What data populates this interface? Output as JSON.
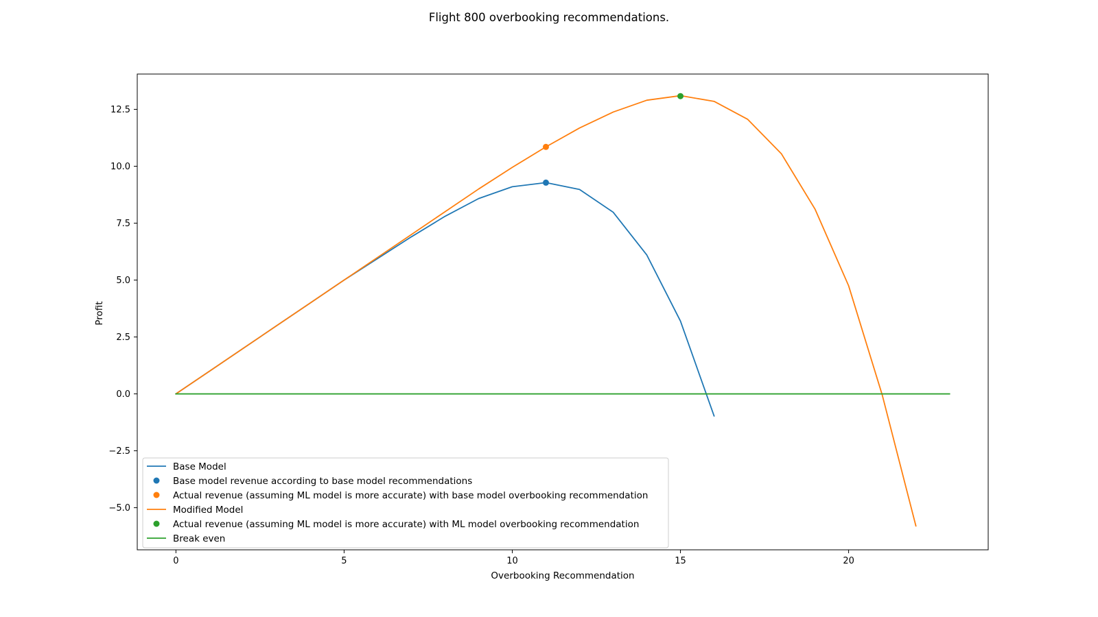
{
  "chart_data": {
    "type": "line",
    "title": "Flight 800 overbooking recommendations.",
    "xlabel": "Overbooking Recommendation",
    "ylabel": "Profit",
    "xlim": [
      -1.15,
      24.15
    ],
    "ylim": [
      -6.85,
      14.05
    ],
    "xticks": [
      0,
      5,
      10,
      15,
      20
    ],
    "xtick_labels": [
      "0",
      "5",
      "10",
      "15",
      "20"
    ],
    "yticks": [
      -5.0,
      -2.5,
      0.0,
      2.5,
      5.0,
      7.5,
      10.0,
      12.5
    ],
    "ytick_labels": [
      "−5.0",
      "−2.5",
      "0.0",
      "2.5",
      "5.0",
      "7.5",
      "10.0",
      "12.5"
    ],
    "grid": false,
    "legend_position": "lower-left",
    "legend": [
      {
        "label": "Base Model",
        "kind": "line",
        "color": "#1f77b4"
      },
      {
        "label": "Base model revenue according to base model recommendations",
        "kind": "marker",
        "color": "#1f77b4"
      },
      {
        "label": "Actual revenue (assuming ML model is more accurate) with base model overbooking recommendation",
        "kind": "marker",
        "color": "#ff7f0e"
      },
      {
        "label": "Modified Model",
        "kind": "line",
        "color": "#ff7f0e"
      },
      {
        "label": "Actual revenue (assuming ML model is more accurate) with ML model overbooking recommendation",
        "kind": "marker",
        "color": "#2ca02c"
      },
      {
        "label": "Break even",
        "kind": "line",
        "color": "#2ca02c"
      }
    ],
    "series": [
      {
        "name": "Base Model",
        "kind": "line",
        "color": "#1f77b4",
        "x": [
          0,
          1,
          2,
          3,
          4,
          5,
          6,
          7,
          8,
          9,
          10,
          11,
          12,
          13,
          14,
          15,
          16
        ],
        "y": [
          0.0,
          1.0,
          2.0,
          3.0,
          4.0,
          5.0,
          5.95,
          6.9,
          7.8,
          8.58,
          9.1,
          9.28,
          8.98,
          7.98,
          6.1,
          3.2,
          -0.97
        ]
      },
      {
        "name": "Modified Model",
        "kind": "line",
        "color": "#ff7f0e",
        "x": [
          0,
          1,
          2,
          3,
          4,
          5,
          6,
          7,
          8,
          9,
          10,
          11,
          12,
          13,
          14,
          15,
          16,
          17,
          18,
          19,
          20,
          21,
          22
        ],
        "y": [
          0.0,
          1.0,
          2.0,
          3.0,
          4.0,
          5.0,
          6.0,
          7.0,
          8.0,
          9.0,
          9.95,
          10.85,
          11.68,
          12.38,
          12.9,
          13.1,
          12.85,
          12.06,
          10.55,
          8.12,
          4.75,
          -0.05,
          -5.8
        ]
      },
      {
        "name": "Break even",
        "kind": "line",
        "color": "#2ca02c",
        "x": [
          0,
          23
        ],
        "y": [
          0.0,
          0.0
        ]
      },
      {
        "name": "Base model revenue according to base model recommendations",
        "kind": "marker",
        "color": "#1f77b4",
        "x": [
          11
        ],
        "y": [
          9.28
        ]
      },
      {
        "name": "Actual revenue (assuming ML model is more accurate) with base model overbooking recommendation",
        "kind": "marker",
        "color": "#ff7f0e",
        "x": [
          11
        ],
        "y": [
          10.85
        ]
      },
      {
        "name": "Actual revenue (assuming ML model is more accurate) with ML model overbooking recommendation",
        "kind": "marker",
        "color": "#2ca02c",
        "x": [
          15
        ],
        "y": [
          13.08
        ]
      }
    ]
  }
}
